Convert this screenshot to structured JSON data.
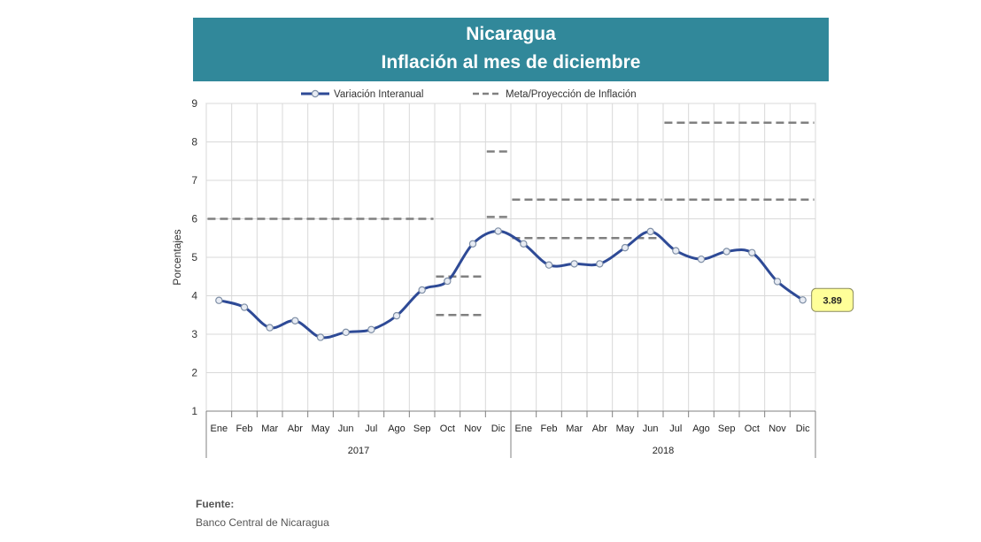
{
  "header": {
    "title": "Nicaragua",
    "subtitle": "Inflación al mes de diciembre"
  },
  "source": {
    "label": "Fuente:",
    "text": "Banco Central de Nicaragua"
  },
  "colors": {
    "header_bg": "#31889a",
    "line": "#2e4a96",
    "target_dash": "#808080",
    "callout_bg": "#ffff99"
  },
  "chart_data": {
    "type": "line",
    "title": "Nicaragua Inflación al mes de diciembre",
    "ylabel": "Porcentajes",
    "xlabel": "",
    "ylim": [
      1,
      9
    ],
    "yticks": [
      1,
      2,
      3,
      4,
      5,
      6,
      7,
      8,
      9
    ],
    "grid": true,
    "legend_position": "top",
    "categories": [
      "Ene",
      "Feb",
      "Mar",
      "Abr",
      "May",
      "Jun",
      "Jul",
      "Ago",
      "Sep",
      "Oct",
      "Nov",
      "Dic",
      "Ene",
      "Feb",
      "Mar",
      "Abr",
      "May",
      "Jun",
      "Jul",
      "Ago",
      "Sep",
      "Oct",
      "Nov",
      "Dic"
    ],
    "groups": [
      {
        "label": "2017",
        "start": 0,
        "end": 11
      },
      {
        "label": "2018",
        "start": 12,
        "end": 23
      }
    ],
    "series": [
      {
        "name": "Variación Interanual",
        "style": "line-with-markers",
        "values": [
          3.88,
          3.7,
          3.17,
          3.35,
          2.92,
          3.05,
          3.12,
          3.48,
          4.15,
          4.38,
          5.35,
          5.68,
          5.35,
          4.8,
          4.83,
          4.83,
          5.25,
          5.67,
          5.17,
          4.95,
          5.15,
          5.12,
          4.37,
          3.89
        ]
      },
      {
        "name": "Meta/Proyección de Inflación",
        "style": "dashed-segments",
        "segments": [
          {
            "x_start": 0,
            "x_end": 8,
            "y": 6.0
          },
          {
            "x_start": 9,
            "x_end": 10,
            "y": 4.5
          },
          {
            "x_start": 9,
            "x_end": 10,
            "y": 3.5
          },
          {
            "x_start": 11,
            "x_end": 11,
            "y": 7.75
          },
          {
            "x_start": 11,
            "x_end": 11,
            "y": 6.05
          },
          {
            "x_start": 12,
            "x_end": 17,
            "y": 6.5
          },
          {
            "x_start": 12,
            "x_end": 17,
            "y": 5.5
          },
          {
            "x_start": 18,
            "x_end": 23,
            "y": 8.5
          },
          {
            "x_start": 18,
            "x_end": 23,
            "y": 6.5
          }
        ]
      }
    ],
    "annotations": [
      {
        "text": "3.89",
        "index": 23
      }
    ]
  }
}
